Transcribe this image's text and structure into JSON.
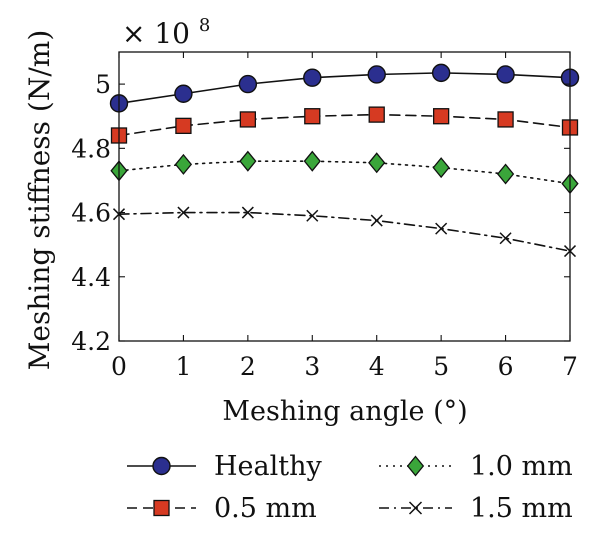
{
  "chart_data": {
    "type": "line",
    "title": "",
    "xlabel": "Meshing angle (°)",
    "ylabel": "Meshing stiffness (N/m)",
    "scale_factor_label": "× 10",
    "scale_factor_exponent": "8",
    "x": [
      0,
      1,
      2,
      3,
      4,
      5,
      6,
      7
    ],
    "xlim": [
      0,
      7
    ],
    "ylim": [
      4.2,
      5.1
    ],
    "xticks": [
      0,
      1,
      2,
      3,
      4,
      5,
      6,
      7
    ],
    "yticks": [
      4.2,
      4.4,
      4.6,
      4.8,
      5.0
    ],
    "ytick_labels": [
      "4.2",
      "4.4",
      "4.6",
      "4.8",
      "5"
    ],
    "legend_position": "bottom",
    "series": [
      {
        "name": "Healthy",
        "legend_label": "Healthy",
        "marker": "circle",
        "line_style": "solid",
        "color": "#2b2f8f",
        "values": [
          4.94,
          4.97,
          5.0,
          5.02,
          5.03,
          5.035,
          5.03,
          5.02
        ]
      },
      {
        "name": "0.5 mm",
        "legend_label": "0.5 mm",
        "marker": "square",
        "line_style": "dashed",
        "color": "#d63a22",
        "values": [
          4.84,
          4.87,
          4.89,
          4.9,
          4.905,
          4.9,
          4.89,
          4.865
        ]
      },
      {
        "name": "1.0 mm",
        "legend_label": "1.0 mm",
        "marker": "diamond",
        "line_style": "dotted",
        "color": "#3aa63a",
        "values": [
          4.73,
          4.75,
          4.76,
          4.76,
          4.755,
          4.74,
          4.72,
          4.69
        ]
      },
      {
        "name": "1.5 mm",
        "legend_label": "1.5 mm",
        "marker": "x",
        "line_style": "dashdot",
        "color": "#111111",
        "values": [
          4.595,
          4.6,
          4.6,
          4.59,
          4.575,
          4.55,
          4.52,
          4.48
        ]
      }
    ]
  }
}
